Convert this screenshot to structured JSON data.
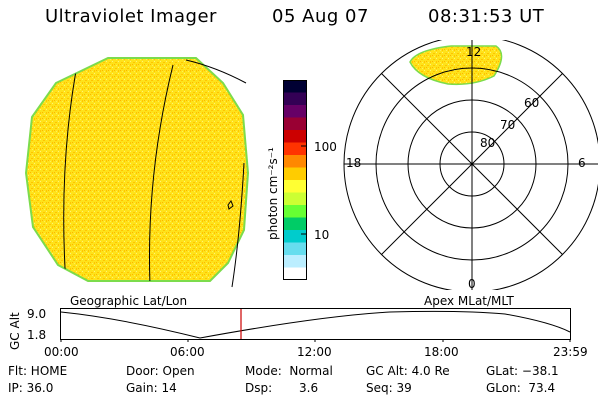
{
  "header": {
    "title": "Ultraviolet Imager",
    "date": "05 Aug 07",
    "time": "08:31:53 UT"
  },
  "colorbar": {
    "unit_label": "photon cm⁻²s⁻¹",
    "ticks": [
      "100",
      "10"
    ],
    "colors": [
      "#000033",
      "#330055",
      "#660066",
      "#990033",
      "#cc0000",
      "#ff3300",
      "#ff8800",
      "#ffcc00",
      "#ffff33",
      "#ccff33",
      "#66ff33",
      "#00cc66",
      "#00cccc",
      "#66ddee",
      "#bbeeff",
      "#ffffff"
    ]
  },
  "polar": {
    "lat_labels": [
      "80",
      "70",
      "60"
    ],
    "mlt_labels": {
      "top": "12",
      "left": "18",
      "right": "6",
      "bottom": "0"
    }
  },
  "timeline": {
    "ylabel": "GC Alt",
    "ymax": "9.0",
    "ymin": "1.8",
    "left_caption": "Geographic Lat/Lon",
    "right_caption": "Apex  MLat/MLT",
    "xticks": [
      "00:00",
      "06:00",
      "12:00",
      "18:00",
      "23:59"
    ],
    "marker_color": "#cc0000"
  },
  "info": {
    "flt": "Flt: HOME",
    "ip": "IP: 36.0",
    "door": "Door: Open",
    "gain": "Gain: 14",
    "mode": "Mode:  Normal",
    "dsp_label": "Dsp:",
    "dsp_value": "3.6",
    "gcalt": "GC Alt: 4.0 Re",
    "seq": "Seq: 39",
    "glat": "GLat: −38.1",
    "glon": "GLon:  73.4"
  }
}
